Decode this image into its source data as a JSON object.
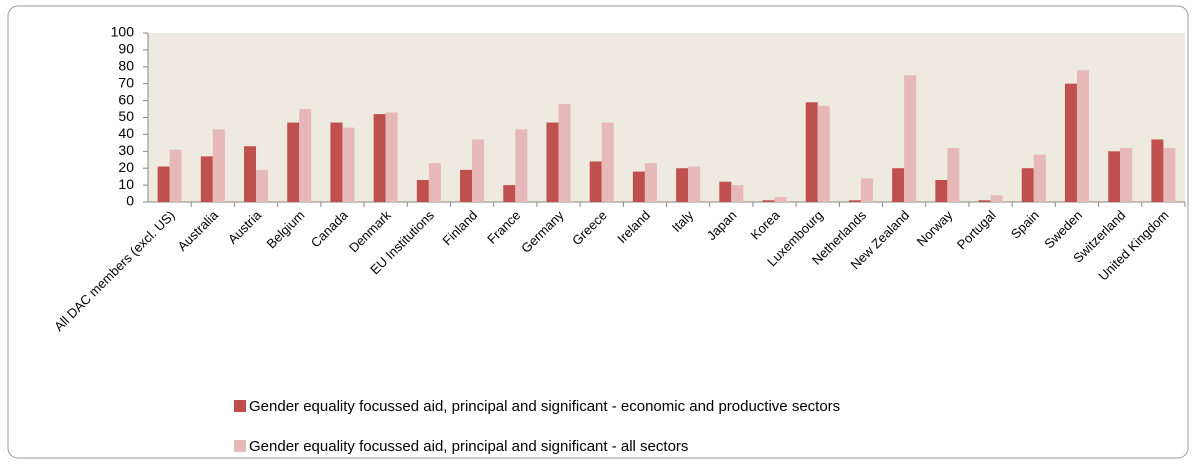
{
  "chart_data": {
    "type": "bar",
    "categories": [
      "All DAC members (excl. US)",
      "Australia",
      "Austria",
      "Belgium",
      "Canada",
      "Denmark",
      "EU Institutions",
      "Finland",
      "France",
      "Germany",
      "Greece",
      "Ireland",
      "Italy",
      "Japan",
      "Korea",
      "Luxembourg",
      "Netherlands",
      "New Zealand",
      "Norway",
      "Portugal",
      "Spain",
      "Sweden",
      "Switzerland",
      "United Kingdom"
    ],
    "series": [
      {
        "name": "Gender equality focussed aid, principal and significant - economic and productive sectors",
        "color": "#c0504d",
        "values": [
          21,
          27,
          33,
          47,
          47,
          52,
          13,
          19,
          10,
          47,
          24,
          18,
          20,
          12,
          1,
          59,
          1,
          20,
          13,
          1,
          20,
          70,
          30,
          37
        ]
      },
      {
        "name": "Gender equality focussed aid, principal and significant - all sectors",
        "color": "#e6b9b8",
        "values": [
          31,
          43,
          19,
          55,
          44,
          53,
          23,
          37,
          43,
          58,
          47,
          23,
          21,
          10,
          3,
          57,
          14,
          75,
          32,
          4,
          28,
          78,
          32,
          32
        ]
      }
    ],
    "ylim": [
      0,
      100
    ],
    "yticks": [
      0,
      10,
      20,
      30,
      40,
      50,
      60,
      70,
      80,
      90,
      100
    ]
  }
}
